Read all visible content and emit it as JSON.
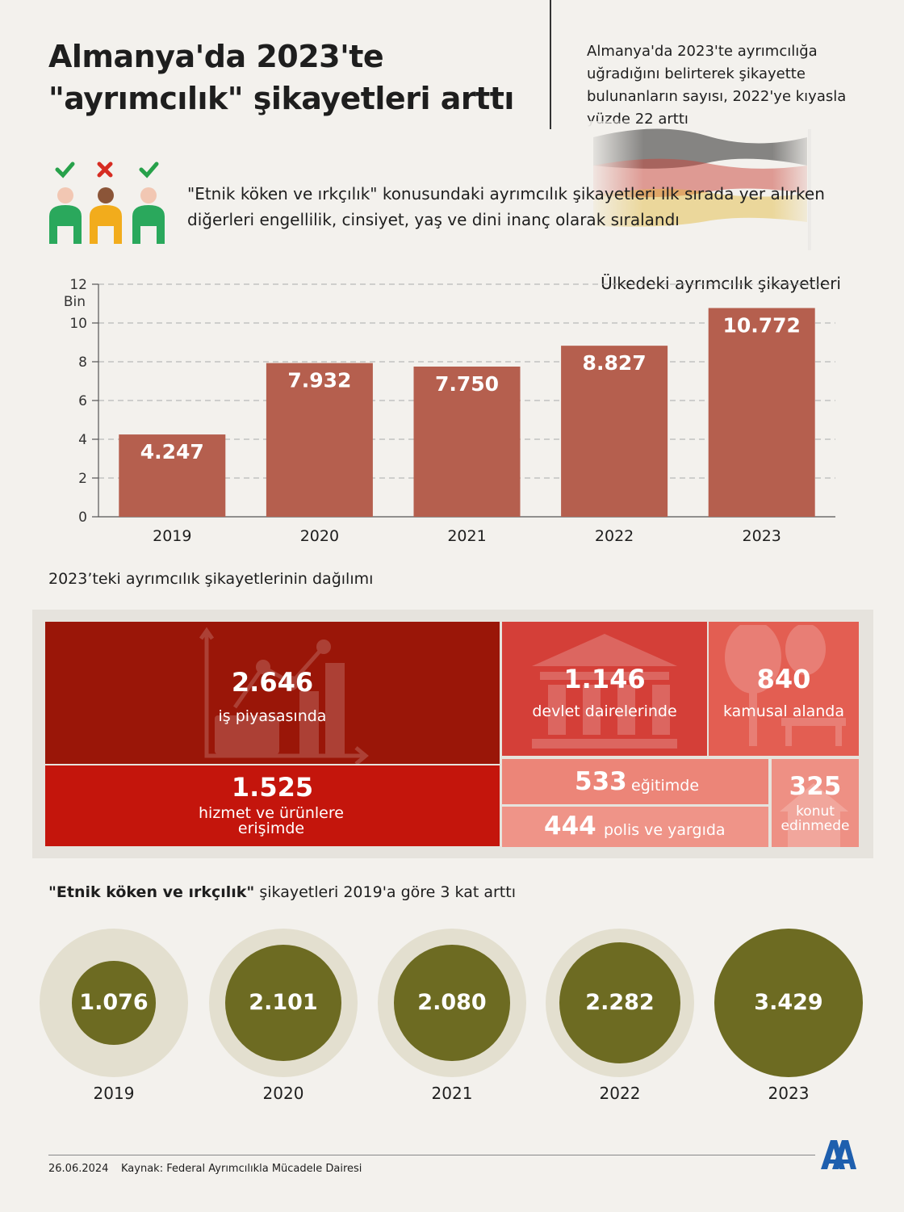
{
  "header": {
    "title_line1": "Almanya'da 2023'te",
    "title_line2": "\"ayrımcılık\" şikayetleri arttı",
    "subtitle": "Almanya'da 2023'te ayrımcılığa uğradığını belirterek şikayette bulunanların sayısı, 2022'ye kıyasla yüzde 22 arttı"
  },
  "intro": {
    "text": "\"Etnik köken ve ırkçılık\" konusundaki ayrımcılık şikayetleri ilk sırada yer alırken diğerleri engellilik, cinsiyet, yaş ve dini inanç olarak sıralandı",
    "icons": [
      "check-icon",
      "cross-icon",
      "check-icon"
    ]
  },
  "chart_data": [
    {
      "type": "bar",
      "title": "Ülkedeki ayrımcılık şikayetleri",
      "ylabel": "Bin",
      "categories": [
        "2019",
        "2020",
        "2021",
        "2022",
        "2023"
      ],
      "values": [
        4.247,
        7.932,
        7.75,
        8.827,
        10.772
      ],
      "value_labels": [
        "4.247",
        "7.932",
        "7.750",
        "8.827",
        "10.772"
      ],
      "ylim": [
        0,
        12
      ],
      "yticks": [
        0,
        2,
        4,
        6,
        8,
        10,
        12
      ],
      "grid": true,
      "color": "#b55f4e"
    },
    {
      "type": "treemap",
      "title": "2023’teki ayrımcılık şikayetlerinin dağılımı",
      "items": [
        {
          "value": "2.646",
          "label": "iş piyasasında",
          "color": "#9a1608"
        },
        {
          "value": "1.525",
          "label": "hizmet ve ürünlere erişimde",
          "color": "#c4150c"
        },
        {
          "value": "1.146",
          "label": "devlet dairelerinde",
          "color": "#d43f38"
        },
        {
          "value": "840",
          "label": "kamusal alanda",
          "color": "#e35e52"
        },
        {
          "value": "533",
          "label": "eğitimde",
          "color": "#ec8578"
        },
        {
          "value": "444",
          "label": "polis ve yargıda",
          "color": "#ef9488"
        },
        {
          "value": "325",
          "label": "konut edinmede",
          "color": "#ee9084"
        }
      ]
    },
    {
      "type": "bubble",
      "title_bold": "\"Etnik köken ve ırkçılık\"",
      "title_rest": " şikayetleri 2019'a göre 3 kat arttı",
      "categories": [
        "2019",
        "2020",
        "2021",
        "2022",
        "2023"
      ],
      "values": [
        1.076,
        2.101,
        2.08,
        2.282,
        3.429
      ],
      "value_labels": [
        "1.076",
        "2.101",
        "2.080",
        "2.282",
        "3.429"
      ],
      "max_value": 3.429,
      "colors": {
        "inner": "#6d6b22",
        "outer": "#e3dfcf"
      }
    }
  ],
  "footer": {
    "date": "26.06.2024",
    "source": "Kaynak: Federal Ayrımcılıkla Mücadele Dairesi",
    "logo": "AA"
  }
}
